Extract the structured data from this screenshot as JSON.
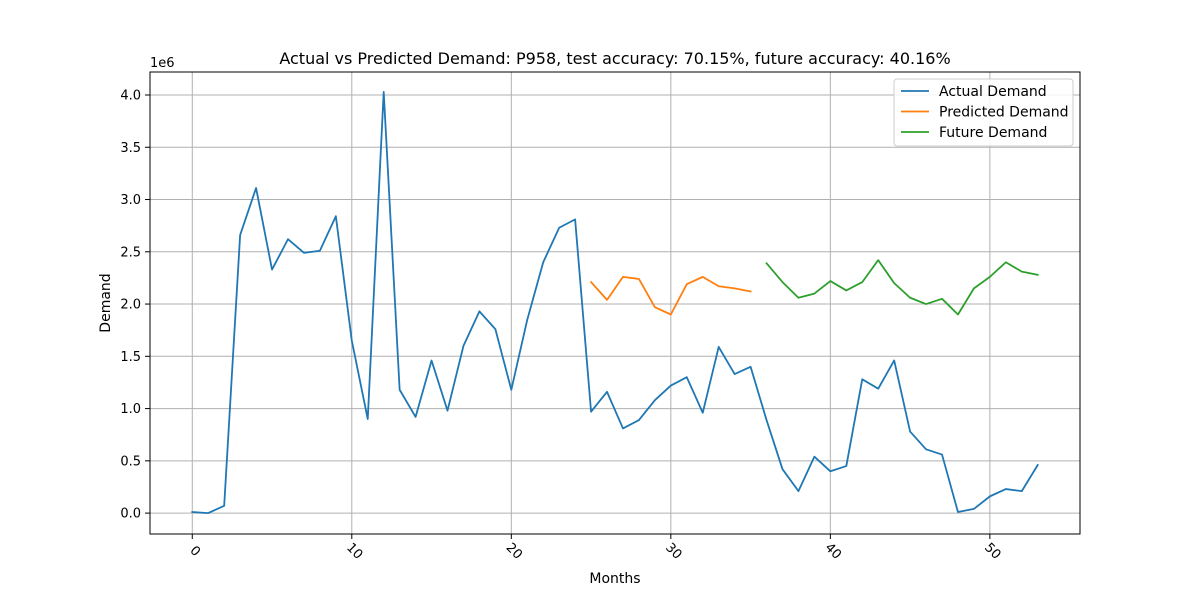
{
  "chart_data": {
    "type": "line",
    "title": "Actual vs Predicted Demand: P958, test accuracy: 70.15%, future accuracy: 40.16%",
    "xlabel": "Months",
    "ylabel": "Demand",
    "y_scale_label": "1e6",
    "xlim": [
      -2.65,
      55.65
    ],
    "ylim": [
      -0.2,
      4.22
    ],
    "x_ticks": [
      0,
      10,
      20,
      30,
      40,
      50
    ],
    "x_tick_labels": [
      "0",
      "10",
      "20",
      "30",
      "40",
      "50"
    ],
    "y_ticks": [
      0.0,
      0.5,
      1.0,
      1.5,
      2.0,
      2.5,
      3.0,
      3.5,
      4.0
    ],
    "y_tick_labels": [
      "0.0",
      "0.5",
      "1.0",
      "1.5",
      "2.0",
      "2.5",
      "3.0",
      "3.5",
      "4.0"
    ],
    "grid": true,
    "legend_position": "top-right",
    "series": [
      {
        "name": "Actual Demand",
        "color": "#1f77b4",
        "x": [
          0,
          1,
          2,
          3,
          4,
          5,
          6,
          7,
          8,
          9,
          10,
          11,
          12,
          13,
          14,
          15,
          16,
          17,
          18,
          19,
          20,
          21,
          22,
          23,
          24,
          25,
          26,
          27,
          28,
          29,
          30,
          31,
          32,
          33,
          34,
          35,
          36,
          37,
          38,
          39,
          40,
          41,
          42,
          43,
          44,
          45,
          46,
          47,
          48,
          49,
          50,
          51,
          52,
          53
        ],
        "y": [
          0.01,
          0.0,
          0.07,
          2.66,
          3.11,
          2.33,
          2.62,
          2.49,
          2.51,
          2.84,
          1.65,
          0.9,
          4.03,
          1.18,
          0.92,
          1.46,
          0.98,
          1.6,
          1.93,
          1.76,
          1.18,
          1.85,
          2.4,
          2.73,
          2.81,
          0.97,
          1.16,
          0.81,
          0.89,
          1.08,
          1.22,
          1.3,
          0.96,
          1.59,
          1.33,
          1.4,
          0.89,
          0.42,
          0.21,
          0.54,
          0.4,
          0.45,
          1.28,
          1.19,
          1.46,
          0.78,
          0.61,
          0.56,
          0.01,
          0.04,
          0.16,
          0.23,
          0.21,
          0.46
        ]
      },
      {
        "name": "Predicted Demand",
        "color": "#ff7f0e",
        "x": [
          25,
          26,
          27,
          28,
          29,
          30,
          31,
          32,
          33,
          34,
          35
        ],
        "y": [
          2.21,
          2.04,
          2.26,
          2.24,
          1.97,
          1.9,
          2.19,
          2.26,
          2.17,
          2.15,
          2.12
        ]
      },
      {
        "name": "Future Demand",
        "color": "#2ca02c",
        "x": [
          36,
          37,
          38,
          39,
          40,
          41,
          42,
          43,
          44,
          45,
          46,
          47,
          48,
          49,
          50,
          51,
          52,
          53
        ],
        "y": [
          2.39,
          2.21,
          2.06,
          2.1,
          2.22,
          2.13,
          2.21,
          2.42,
          2.2,
          2.06,
          2.0,
          2.05,
          1.9,
          2.15,
          2.26,
          2.4,
          2.31,
          2.28
        ]
      }
    ]
  }
}
